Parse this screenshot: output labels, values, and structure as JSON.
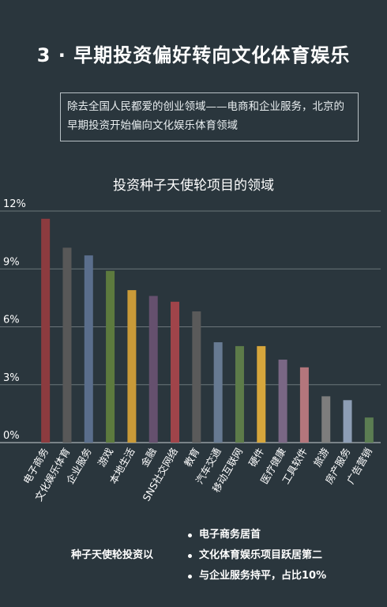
{
  "page": {
    "title": "3 · 早期投资偏好转向文化体育娱乐",
    "intro": "除去全国人民都爱的创业领域——电商和企业服务，北京的早期投资开始偏向文化娱乐体育领域"
  },
  "chart_data": {
    "type": "bar",
    "title": "投资种子天使轮项目的领域",
    "categories": [
      "电子商务",
      "文化娱乐体育",
      "企业服务",
      "游戏",
      "本地生活",
      "金融",
      "SNS社交网络",
      "教育",
      "汽车交通",
      "移动互联网",
      "硬件",
      "医疗健康",
      "工具软件",
      "旅游",
      "房产服务",
      "广告营销"
    ],
    "values": [
      11.6,
      10.1,
      9.7,
      8.9,
      7.9,
      7.6,
      7.3,
      6.8,
      5.2,
      5.0,
      5.0,
      4.3,
      3.9,
      2.4,
      2.2,
      1.3
    ],
    "colors": [
      "#8c3b3f",
      "#585858",
      "#5a6e8c",
      "#5d7a3e",
      "#c99a38",
      "#65506e",
      "#a0444a",
      "#5a5a5a",
      "#677a92",
      "#5d7b49",
      "#d6a63c",
      "#7a6785",
      "#b3767c",
      "#7d7d7d",
      "#8d9eb5",
      "#5b7d52"
    ],
    "yticks": [
      "0%",
      "3%",
      "6%",
      "9%",
      "12%"
    ],
    "ylim": [
      0,
      12
    ],
    "grid": true,
    "unit": "%"
  },
  "summary": {
    "lead": "种子天使轮投资以",
    "bullets": [
      "电子商务居首",
      "文化体育娱乐项目跃居第二",
      "与企业服务持平，占比10%"
    ]
  }
}
